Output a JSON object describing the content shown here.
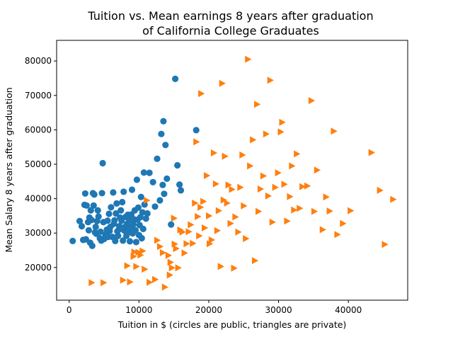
{
  "chart_data": {
    "type": "scatter",
    "title": [
      "Tuition vs. Mean earnings 8 years after graduation",
      "of California College Graduates"
    ],
    "xlabel": "Tuition in $ (circles are public, triangles are private)",
    "ylabel": "Mean Salary 8 years after graduation",
    "xlim": [
      -1800,
      48500
    ],
    "ylim": [
      10500,
      86000
    ],
    "xticks": [
      0,
      10000,
      20000,
      30000,
      40000
    ],
    "xtick_labels": [
      "0",
      "10000",
      "20000",
      "30000",
      "40000"
    ],
    "yticks": [
      20000,
      30000,
      40000,
      50000,
      60000,
      70000,
      80000
    ],
    "ytick_labels": [
      "20000",
      "30000",
      "40000",
      "50000",
      "60000",
      "70000",
      "80000"
    ],
    "grid": false,
    "legend": "none",
    "series": [
      {
        "marker": "circle",
        "color": "#1f77b4",
        "points": [
          [
            500,
            27700
          ],
          [
            1500,
            33500
          ],
          [
            1800,
            32000
          ],
          [
            2000,
            28000
          ],
          [
            2200,
            38200
          ],
          [
            2300,
            41500
          ],
          [
            2400,
            28200
          ],
          [
            2500,
            38000
          ],
          [
            2700,
            33200
          ],
          [
            2800,
            30800
          ],
          [
            2900,
            34500
          ],
          [
            3000,
            27200
          ],
          [
            3100,
            36600
          ],
          [
            3200,
            33800
          ],
          [
            3300,
            26300
          ],
          [
            3400,
            41600
          ],
          [
            3500,
            38000
          ],
          [
            3600,
            41200
          ],
          [
            3700,
            30200
          ],
          [
            3800,
            31800
          ],
          [
            3900,
            29800
          ],
          [
            4000,
            33500
          ],
          [
            4100,
            36600
          ],
          [
            4200,
            34800
          ],
          [
            4400,
            28500
          ],
          [
            4500,
            30400
          ],
          [
            4600,
            27800
          ],
          [
            4700,
            41600
          ],
          [
            4800,
            50300
          ],
          [
            4900,
            33200
          ],
          [
            5000,
            28300
          ],
          [
            5200,
            29600
          ],
          [
            5400,
            31000
          ],
          [
            5500,
            33600
          ],
          [
            5600,
            28900
          ],
          [
            5700,
            35600
          ],
          [
            5800,
            30600
          ],
          [
            5900,
            31800
          ],
          [
            6000,
            37500
          ],
          [
            6200,
            28900
          ],
          [
            6300,
            41800
          ],
          [
            6400,
            32700
          ],
          [
            6500,
            33700
          ],
          [
            6600,
            27700
          ],
          [
            6700,
            35700
          ],
          [
            6800,
            38600
          ],
          [
            6900,
            30500
          ],
          [
            7000,
            29200
          ],
          [
            7100,
            31000
          ],
          [
            7200,
            32000
          ],
          [
            7300,
            34500
          ],
          [
            7400,
            36600
          ],
          [
            7500,
            33600
          ],
          [
            7600,
            39000
          ],
          [
            7700,
            27800
          ],
          [
            7800,
            42000
          ],
          [
            7900,
            30700
          ],
          [
            8000,
            31800
          ],
          [
            8100,
            34700
          ],
          [
            8200,
            29200
          ],
          [
            8300,
            32700
          ],
          [
            8400,
            35300
          ],
          [
            8500,
            30300
          ],
          [
            8600,
            33800
          ],
          [
            8700,
            27600
          ],
          [
            8800,
            31400
          ],
          [
            8900,
            35400
          ],
          [
            9000,
            42600
          ],
          [
            9100,
            29900
          ],
          [
            9200,
            32500
          ],
          [
            9300,
            34000
          ],
          [
            9400,
            36600
          ],
          [
            9500,
            30800
          ],
          [
            9600,
            27400
          ],
          [
            9700,
            45500
          ],
          [
            9800,
            33900
          ],
          [
            9900,
            37400
          ],
          [
            10000,
            29400
          ],
          [
            10100,
            32300
          ],
          [
            10200,
            34600
          ],
          [
            10300,
            40500
          ],
          [
            10400,
            28500
          ],
          [
            10500,
            36000
          ],
          [
            10600,
            31200
          ],
          [
            10700,
            47600
          ],
          [
            10800,
            38300
          ],
          [
            11000,
            34200
          ],
          [
            11200,
            35700
          ],
          [
            11500,
            47500
          ],
          [
            12000,
            44800
          ],
          [
            12300,
            37700
          ],
          [
            12600,
            51600
          ],
          [
            13000,
            39500
          ],
          [
            13200,
            58800
          ],
          [
            13400,
            44000
          ],
          [
            13500,
            62500
          ],
          [
            13600,
            41400
          ],
          [
            13800,
            55600
          ],
          [
            14000,
            45800
          ],
          [
            14600,
            32500
          ],
          [
            15200,
            74800
          ],
          [
            15500,
            49700
          ],
          [
            15800,
            44100
          ],
          [
            16000,
            42400
          ],
          [
            18200,
            59900
          ]
        ]
      },
      {
        "marker": "triangle-right",
        "color": "#ff7f0e",
        "points": [
          [
            3200,
            15600
          ],
          [
            4900,
            15600
          ],
          [
            7700,
            16300
          ],
          [
            8300,
            20500
          ],
          [
            8700,
            15800
          ],
          [
            9200,
            23200
          ],
          [
            9300,
            24500
          ],
          [
            9600,
            20300
          ],
          [
            9900,
            24400
          ],
          [
            10200,
            23600
          ],
          [
            10500,
            24800
          ],
          [
            10800,
            19500
          ],
          [
            11100,
            39500
          ],
          [
            11500,
            15700
          ],
          [
            12300,
            16500
          ],
          [
            12600,
            27900
          ],
          [
            13000,
            26100
          ],
          [
            13400,
            24300
          ],
          [
            13700,
            14300
          ],
          [
            14200,
            23500
          ],
          [
            14400,
            17800
          ],
          [
            14500,
            21500
          ],
          [
            14700,
            19900
          ],
          [
            15000,
            34300
          ],
          [
            15100,
            26800
          ],
          [
            15300,
            25500
          ],
          [
            15600,
            19900
          ],
          [
            15900,
            30900
          ],
          [
            16200,
            30300
          ],
          [
            16500,
            24200
          ],
          [
            16800,
            26900
          ],
          [
            17100,
            30400
          ],
          [
            17400,
            32400
          ],
          [
            17700,
            27000
          ],
          [
            18000,
            38700
          ],
          [
            18200,
            56500
          ],
          [
            18400,
            34800
          ],
          [
            18600,
            29200
          ],
          [
            18800,
            37500
          ],
          [
            18900,
            70500
          ],
          [
            19200,
            39200
          ],
          [
            19400,
            31500
          ],
          [
            19700,
            46700
          ],
          [
            20000,
            35000
          ],
          [
            20100,
            26900
          ],
          [
            20400,
            28000
          ],
          [
            20700,
            53300
          ],
          [
            21000,
            44300
          ],
          [
            21200,
            30700
          ],
          [
            21400,
            36500
          ],
          [
            21700,
            20300
          ],
          [
            21900,
            73500
          ],
          [
            22100,
            39600
          ],
          [
            22300,
            52300
          ],
          [
            22600,
            38700
          ],
          [
            22800,
            44000
          ],
          [
            23100,
            32800
          ],
          [
            23300,
            42700
          ],
          [
            23600,
            19800
          ],
          [
            23800,
            34700
          ],
          [
            24200,
            30300
          ],
          [
            24500,
            43300
          ],
          [
            24800,
            52700
          ],
          [
            25000,
            37900
          ],
          [
            25300,
            28400
          ],
          [
            25600,
            80500
          ],
          [
            25900,
            49500
          ],
          [
            26300,
            57100
          ],
          [
            26600,
            22000
          ],
          [
            26900,
            67400
          ],
          [
            27100,
            36300
          ],
          [
            27400,
            42800
          ],
          [
            27800,
            46600
          ],
          [
            28200,
            58800
          ],
          [
            28500,
            40800
          ],
          [
            28800,
            74400
          ],
          [
            29100,
            33200
          ],
          [
            29500,
            43300
          ],
          [
            29900,
            47500
          ],
          [
            30300,
            59400
          ],
          [
            30500,
            62200
          ],
          [
            30800,
            44200
          ],
          [
            31200,
            33500
          ],
          [
            31600,
            40600
          ],
          [
            31900,
            49500
          ],
          [
            32200,
            36700
          ],
          [
            32600,
            53000
          ],
          [
            33000,
            37200
          ],
          [
            33400,
            43500
          ],
          [
            34100,
            43700
          ],
          [
            34700,
            68500
          ],
          [
            35100,
            36300
          ],
          [
            35500,
            48300
          ],
          [
            36300,
            31000
          ],
          [
            36800,
            40500
          ],
          [
            37300,
            36400
          ],
          [
            37900,
            59600
          ],
          [
            38400,
            29600
          ],
          [
            39200,
            32800
          ],
          [
            40300,
            36500
          ],
          [
            43300,
            53400
          ],
          [
            44500,
            42400
          ],
          [
            45200,
            26700
          ],
          [
            46400,
            39800
          ]
        ]
      }
    ]
  }
}
